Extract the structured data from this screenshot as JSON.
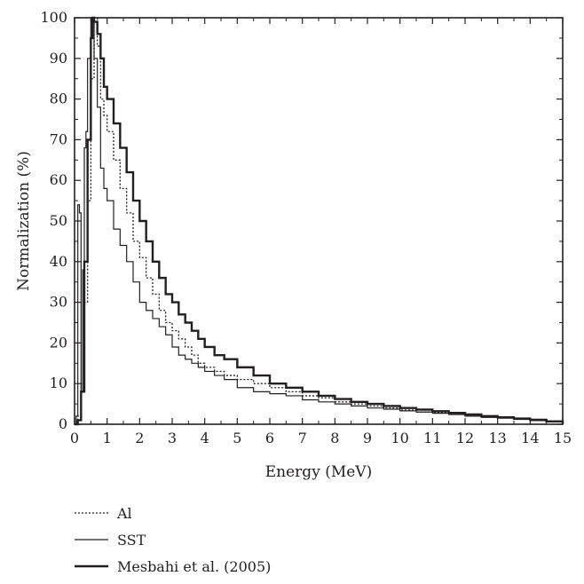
{
  "chart_data": {
    "type": "line",
    "xlabel": "Energy (MeV)",
    "ylabel": "Normalization (%)",
    "xlim": [
      0,
      15
    ],
    "ylim": [
      0,
      100
    ],
    "xticks": [
      "0",
      "1",
      "2",
      "3",
      "4",
      "5",
      "6",
      "7",
      "8",
      "9",
      "10",
      "11",
      "12",
      "13",
      "14",
      "15"
    ],
    "yticks": [
      "0",
      "10",
      "20",
      "30",
      "40",
      "50",
      "60",
      "70",
      "80",
      "90",
      "100"
    ],
    "grid": false,
    "legend_position": "bottom-left, below plot",
    "series": [
      {
        "name": "Al",
        "style": "dotted",
        "x": [
          0,
          0.1,
          0.2,
          0.3,
          0.4,
          0.5,
          0.6,
          0.7,
          0.8,
          0.9,
          1.0,
          1.2,
          1.4,
          1.6,
          1.8,
          2.0,
          2.2,
          2.4,
          2.6,
          2.8,
          3.0,
          3.2,
          3.4,
          3.6,
          3.8,
          4.0,
          4.3,
          4.6,
          5.0,
          5.5,
          6.0,
          6.5,
          7.0,
          7.5,
          8.0,
          8.5,
          9.0,
          9.5,
          10.0,
          10.5,
          11.0,
          11.5,
          12.0,
          12.5,
          13.0,
          13.5,
          14.0,
          14.5,
          15.0
        ],
        "y": [
          0,
          2,
          10,
          30,
          55,
          85,
          100,
          93,
          80,
          76,
          72,
          65,
          58,
          52,
          45,
          41,
          36,
          32,
          28,
          25,
          23,
          21,
          19,
          17,
          15,
          14,
          13,
          12,
          11,
          10,
          9,
          8,
          7,
          6.5,
          5.5,
          5,
          4.5,
          4,
          3.5,
          3,
          2.8,
          2.5,
          2.2,
          2,
          1.8,
          1.5,
          1.2,
          0.8,
          0
        ]
      },
      {
        "name": "SST",
        "style": "solid-thin",
        "x": [
          0,
          0.05,
          0.1,
          0.15,
          0.2,
          0.25,
          0.3,
          0.35,
          0.4,
          0.5,
          0.6,
          0.7,
          0.8,
          0.9,
          1.0,
          1.2,
          1.4,
          1.6,
          1.8,
          2.0,
          2.2,
          2.4,
          2.6,
          2.8,
          3.0,
          3.2,
          3.4,
          3.6,
          3.8,
          4.0,
          4.3,
          4.6,
          5.0,
          5.5,
          6.0,
          6.5,
          7.0,
          7.5,
          8.0,
          8.5,
          9.0,
          9.5,
          10.0,
          10.5,
          11.0,
          11.5,
          12.0,
          12.5,
          13.0,
          13.5,
          14.0,
          14.5,
          15.0
        ],
        "y": [
          0,
          2,
          54,
          52,
          8,
          38,
          68,
          72,
          90,
          100,
          90,
          78,
          63,
          58,
          55,
          48,
          44,
          40,
          35,
          30,
          28,
          26,
          24,
          22,
          19,
          17,
          16,
          15,
          14,
          13,
          12,
          11,
          9,
          8,
          7.5,
          7,
          6,
          5.5,
          5,
          4.5,
          4,
          3.7,
          3.3,
          3,
          2.7,
          2.4,
          2,
          1.7,
          1.5,
          1.2,
          0.9,
          0.6,
          0
        ]
      },
      {
        "name": "Mesbahi et al. (2005)",
        "style": "solid-thick",
        "x": [
          0,
          0.1,
          0.2,
          0.3,
          0.4,
          0.5,
          0.55,
          0.6,
          0.7,
          0.8,
          0.9,
          1.0,
          1.2,
          1.4,
          1.6,
          1.8,
          2.0,
          2.2,
          2.4,
          2.6,
          2.8,
          3.0,
          3.2,
          3.4,
          3.6,
          3.8,
          4.0,
          4.3,
          4.6,
          5.0,
          5.5,
          6.0,
          6.5,
          7.0,
          7.5,
          8.0,
          8.5,
          9.0,
          9.5,
          10.0,
          10.5,
          11.0,
          11.5,
          12.0,
          12.5,
          13.0,
          13.5,
          14.0,
          14.5,
          15.0
        ],
        "y": [
          0,
          1,
          8,
          40,
          70,
          95,
          100,
          99,
          96,
          90,
          83,
          80,
          74,
          68,
          62,
          55,
          50,
          45,
          40,
          36,
          32,
          30,
          27,
          25,
          23,
          21,
          19,
          17,
          16,
          14,
          12,
          10,
          9,
          8,
          7,
          6.2,
          5.5,
          5,
          4.5,
          4,
          3.6,
          3.2,
          2.8,
          2.4,
          2,
          1.7,
          1.4,
          1.1,
          0.7,
          0
        ]
      }
    ]
  }
}
